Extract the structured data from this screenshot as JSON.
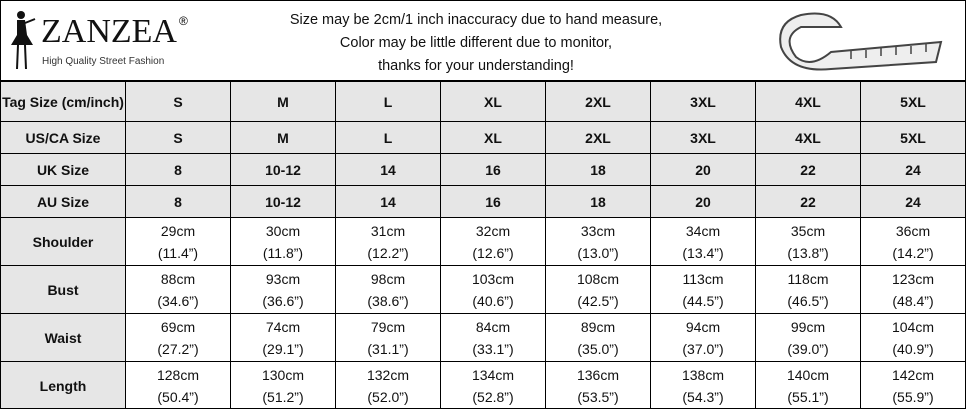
{
  "logo": {
    "brand": "ZANZEA",
    "tagline": "High Quality Street Fashion",
    "mark": "®"
  },
  "notice": [
    "Size may be 2cm/1 inch inaccuracy due to hand measure,",
    "Color may be little different due to monitor,",
    "thanks for your understanding!"
  ],
  "table": {
    "header_label": "Tag Size (cm/inch)",
    "sizes": [
      "S",
      "M",
      "L",
      "XL",
      "2XL",
      "3XL",
      "4XL",
      "5XL"
    ],
    "rows": [
      {
        "label": "US/CA Size",
        "values": [
          "S",
          "M",
          "L",
          "XL",
          "2XL",
          "3XL",
          "4XL",
          "5XL"
        ]
      },
      {
        "label": "UK Size",
        "values": [
          "8",
          "10-12",
          "14",
          "16",
          "18",
          "20",
          "22",
          "24"
        ]
      },
      {
        "label": "AU Size",
        "values": [
          "8",
          "10-12",
          "14",
          "16",
          "18",
          "20",
          "22",
          "24"
        ]
      }
    ],
    "measures": [
      {
        "label": "Shoulder",
        "cm": [
          "29cm",
          "30cm",
          "31cm",
          "32cm",
          "33cm",
          "34cm",
          "35cm",
          "36cm"
        ],
        "inch": [
          "(11.4”)",
          "(11.8”)",
          "(12.2”)",
          "(12.6”)",
          "(13.0”)",
          "(13.4”)",
          "(13.8”)",
          "(14.2”)"
        ]
      },
      {
        "label": "Bust",
        "cm": [
          "88cm",
          "93cm",
          "98cm",
          "103cm",
          "108cm",
          "113cm",
          "118cm",
          "123cm"
        ],
        "inch": [
          "(34.6”)",
          "(36.6”)",
          "(38.6”)",
          "(40.6”)",
          "(42.5”)",
          "(44.5”)",
          "(46.5”)",
          "(48.4”)"
        ]
      },
      {
        "label": "Waist",
        "cm": [
          "69cm",
          "74cm",
          "79cm",
          "84cm",
          "89cm",
          "94cm",
          "99cm",
          "104cm"
        ],
        "inch": [
          "(27.2”)",
          "(29.1”)",
          "(31.1”)",
          "(33.1”)",
          "(35.0”)",
          "(37.0”)",
          "(39.0”)",
          "(40.9”)"
        ]
      },
      {
        "label": "Length",
        "cm": [
          "128cm",
          "130cm",
          "132cm",
          "134cm",
          "136cm",
          "138cm",
          "140cm",
          "142cm"
        ],
        "inch": [
          "(50.4”)",
          "(51.2”)",
          "(52.0”)",
          "(52.8”)",
          "(53.5”)",
          "(54.3”)",
          "(55.1”)",
          "(55.9”)"
        ]
      }
    ]
  }
}
